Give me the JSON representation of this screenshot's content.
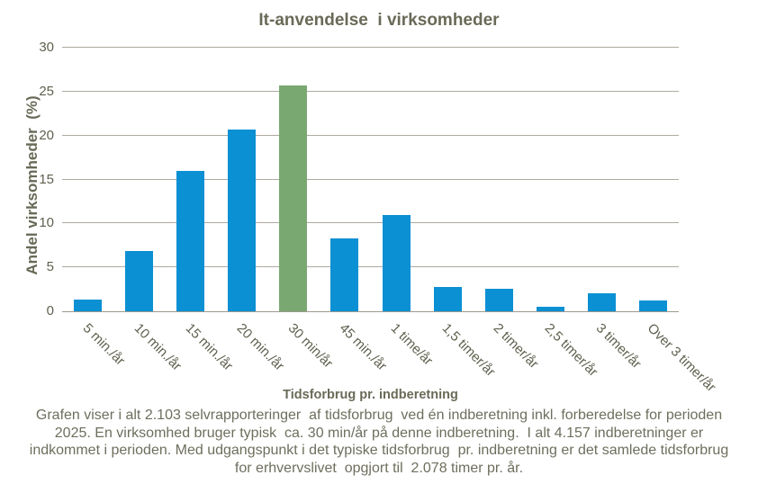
{
  "chart_data": {
    "type": "bar",
    "title": "It-anvendelse  i virksomheder",
    "xlabel": "Tidsforbrug pr. indberetning",
    "ylabel": "Andel virksomheder  (%)",
    "categories": [
      "5 min./år",
      "10 min./år",
      "15 min./år",
      "20 min./år",
      "30 min/år",
      "45 min./år",
      "1 time/år",
      "1,5 timer/år",
      "2 timer/år",
      "2,5 timer/år",
      "3 timer/år",
      "Over 3 timer/år"
    ],
    "values": [
      1.3,
      6.9,
      16.0,
      20.7,
      25.7,
      8.3,
      11.0,
      2.8,
      2.6,
      0.5,
      2.0,
      1.2
    ],
    "highlighted_category": "30 min/år",
    "highlight_index": 4,
    "yticks": [
      0,
      5,
      10,
      15,
      20,
      25,
      30
    ],
    "ylim": [
      0,
      30
    ],
    "grid": "horizontal",
    "legend": "none",
    "colors": {
      "bar": "#0a90d3",
      "bar_highlight": "#79a871",
      "gridline": "#aeaaa0",
      "axis_line": "#9d998f",
      "title_text": "#6a6a58",
      "axis_text": "#60604f",
      "caption_text": "#6e6e5e"
    }
  },
  "caption": {
    "lines": [
      "Grafen viser i alt 2.103 selvrapporteringer  af tidsforbrug  ved én indberetning inkl. forberedelse for perioden",
      "2025. En virksomhed bruger typisk  ca. 30 min/år på denne indberetning.  I alt 4.157 indberetninger er",
      "indkommet i perioden. Med udgangspunkt i det typiske tidsforbrug  pr. indberetning er det samlede tidsforbrug",
      "for erhvervslivet  opgjort til  2.078 timer pr. år."
    ]
  }
}
